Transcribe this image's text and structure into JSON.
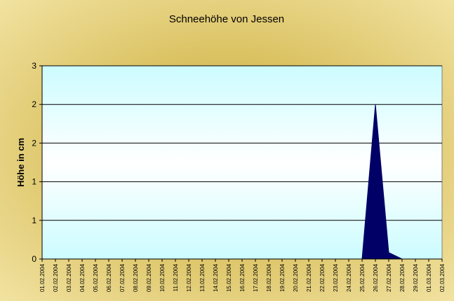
{
  "chart_data": {
    "type": "area",
    "title": "Schneehöhe von Jessen",
    "y_label": "Höhe in cm",
    "categories": [
      "01.02.2004",
      "02.02.2004",
      "03.02.2004",
      "04.02.2004",
      "05.02.2004",
      "06.02.2004",
      "07.02.2004",
      "08.02.2004",
      "09.02.2004",
      "10.02.2004",
      "11.02.2004",
      "12.02.2004",
      "13.02.2004",
      "14.02.2004",
      "15.02.2004",
      "16.02.2004",
      "17.02.2004",
      "18.02.2004",
      "19.02.2004",
      "20.02.2004",
      "21.02.2004",
      "22.02.2004",
      "23.02.2004",
      "24.02.2004",
      "25.02.2004",
      "26.02.2004",
      "27.02.2004",
      "28.02.2004",
      "29.02.2004",
      "01.03.2004",
      "02.03.2004"
    ],
    "values": [
      0,
      0,
      0,
      0,
      0,
      0,
      0,
      0,
      0,
      0,
      0,
      0,
      0,
      0,
      0,
      0,
      0,
      0,
      0,
      0,
      0,
      0,
      0,
      0,
      0,
      2.4,
      0.1,
      0,
      0,
      0,
      0
    ],
    "color": "#000066",
    "ylim": [
      0,
      3
    ],
    "yticks": [
      0,
      {
        "value": 0.6,
        "label": "1"
      },
      {
        "value": 1.2,
        "label": "1"
      },
      {
        "value": 1.8,
        "label": "2"
      },
      {
        "value": 2.4,
        "label": "2"
      },
      3
    ],
    "grid": true
  }
}
